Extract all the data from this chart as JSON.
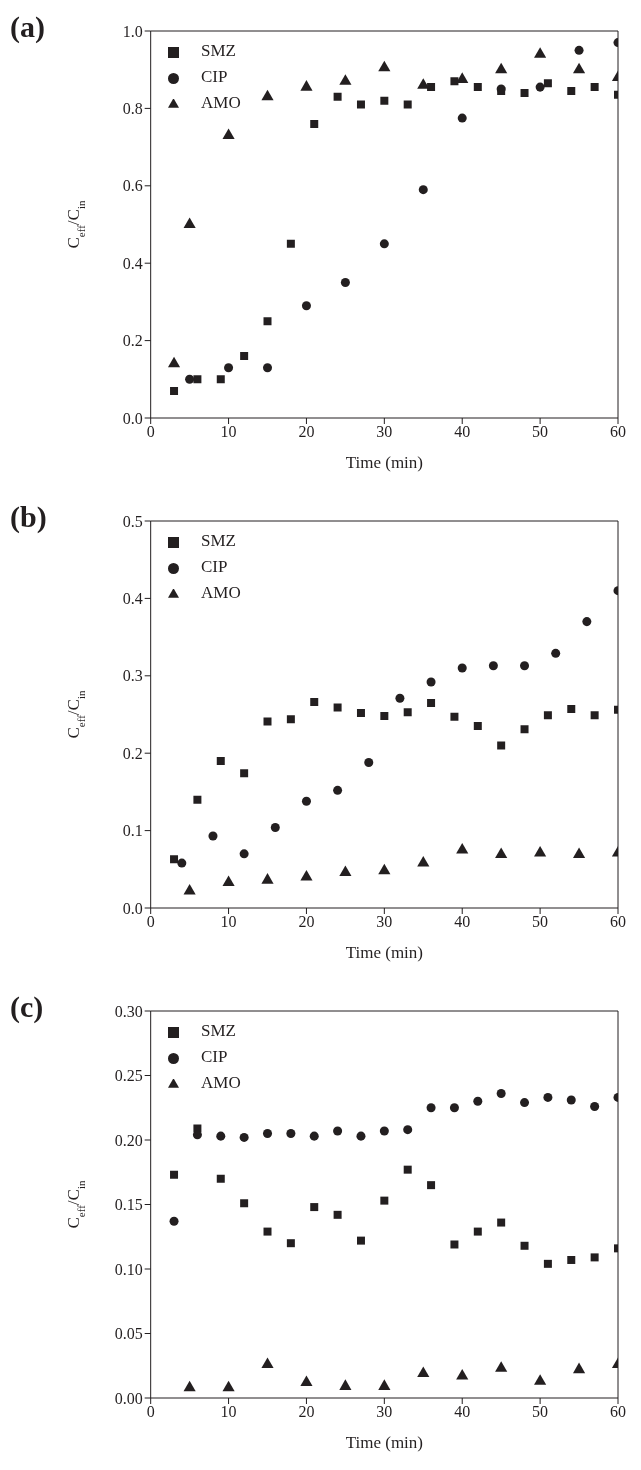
{
  "chart_data": [
    {
      "type": "scatter",
      "title": "(a)",
      "xlabel": "Time (min)",
      "ylabel": "C$_{eff}$/C$_{in}$",
      "xlim": [
        0,
        60
      ],
      "xticks": [
        0,
        10,
        20,
        30,
        40,
        50,
        60
      ],
      "ylim": [
        0,
        1
      ],
      "yticks": [
        {
          "value": 0,
          "label": "0.0"
        },
        0.2,
        0.4,
        0.6,
        0.8,
        {
          "value": 1,
          "label": "1.0"
        }
      ],
      "legend": "top left",
      "series": [
        {
          "name": "SMZ",
          "color": "#231f20",
          "marker": "square",
          "x": [
            3,
            6,
            9,
            12,
            15,
            18,
            21,
            24,
            27,
            30,
            33,
            36,
            39,
            42,
            45,
            48,
            51,
            54,
            57,
            60
          ],
          "values": [
            0.07,
            0.1,
            0.1,
            0.16,
            0.25,
            0.45,
            0.76,
            0.83,
            0.81,
            0.82,
            0.81,
            0.855,
            0.87,
            0.855,
            0.845,
            0.84,
            0.865,
            0.845,
            0.855,
            0.835
          ]
        },
        {
          "name": "CIP",
          "color": "#231f20",
          "marker": "circle",
          "x": [
            5,
            10,
            15,
            20,
            25,
            30,
            35,
            40,
            45,
            50,
            55,
            60
          ],
          "values": [
            0.1,
            0.13,
            0.13,
            0.29,
            0.35,
            0.45,
            0.59,
            0.775,
            0.85,
            0.855,
            0.95,
            0.97
          ]
        },
        {
          "name": "AMO",
          "color": "#231f20",
          "marker": "triangle",
          "x": [
            3,
            5,
            10,
            15,
            20,
            25,
            30,
            35,
            40,
            45,
            50,
            55,
            60
          ],
          "values": [
            0.14,
            0.5,
            0.73,
            0.83,
            0.855,
            0.87,
            0.905,
            0.86,
            0.875,
            0.9,
            0.94,
            0.9,
            0.88
          ]
        }
      ]
    },
    {
      "type": "scatter",
      "title": "(b)",
      "xlabel": "Time (min)",
      "ylabel": "C$_{eff}$/C$_{in}$",
      "xlim": [
        0,
        60
      ],
      "xticks": [
        0,
        10,
        20,
        30,
        40,
        50,
        60
      ],
      "ylim": [
        0,
        0.5
      ],
      "yticks": [
        {
          "value": 0,
          "label": "0.0"
        },
        0.1,
        0.2,
        0.3,
        0.4,
        0.5
      ],
      "legend": "top left",
      "series": [
        {
          "name": "SMZ",
          "color": "#231f20",
          "marker": "square",
          "x": [
            3,
            6,
            9,
            12,
            15,
            18,
            21,
            24,
            27,
            30,
            33,
            36,
            39,
            42,
            45,
            48,
            51,
            54,
            57,
            60
          ],
          "values": [
            0.063,
            0.14,
            0.19,
            0.174,
            0.241,
            0.244,
            0.266,
            0.259,
            0.252,
            0.248,
            0.253,
            0.265,
            0.247,
            0.235,
            0.21,
            0.231,
            0.249,
            0.257,
            0.249,
            0.256
          ]
        },
        {
          "name": "CIP",
          "color": "#231f20",
          "marker": "circle",
          "x": [
            4,
            8,
            12,
            16,
            20,
            24,
            28,
            32,
            36,
            40,
            44,
            48,
            52,
            56,
            60
          ],
          "values": [
            0.058,
            0.093,
            0.07,
            0.104,
            0.138,
            0.152,
            0.188,
            0.271,
            0.292,
            0.31,
            0.313,
            0.313,
            0.329,
            0.37,
            0.41
          ]
        },
        {
          "name": "AMO",
          "color": "#231f20",
          "marker": "triangle",
          "x": [
            5,
            10,
            15,
            20,
            25,
            30,
            35,
            40,
            45,
            50,
            55,
            60
          ],
          "values": [
            0.022,
            0.033,
            0.036,
            0.04,
            0.046,
            0.048,
            0.058,
            0.075,
            0.069,
            0.071,
            0.069,
            0.071
          ]
        }
      ]
    },
    {
      "type": "scatter",
      "title": "(c)",
      "xlabel": "Time (min)",
      "ylabel": "C$_{eff}$/C$_{in}$",
      "xlim": [
        0,
        60
      ],
      "xticks": [
        0,
        10,
        20,
        30,
        40,
        50,
        60
      ],
      "ylim": [
        0,
        0.3
      ],
      "yticks": [
        {
          "value": 0,
          "label": "0.00"
        },
        0.05,
        {
          "value": 0.1,
          "label": "0.10"
        },
        0.15,
        {
          "value": 0.2,
          "label": "0.20"
        },
        0.25,
        {
          "value": 0.3,
          "label": "0.30"
        }
      ],
      "legend": "top left",
      "series": [
        {
          "name": "SMZ",
          "color": "#231f20",
          "marker": "square",
          "x": [
            3,
            6,
            9,
            12,
            15,
            18,
            21,
            24,
            27,
            30,
            33,
            36,
            39,
            42,
            45,
            48,
            51,
            54,
            57,
            60
          ],
          "values": [
            0.173,
            0.209,
            0.17,
            0.151,
            0.129,
            0.12,
            0.148,
            0.142,
            0.122,
            0.153,
            0.177,
            0.165,
            0.119,
            0.129,
            0.136,
            0.118,
            0.104,
            0.107,
            0.109,
            0.116
          ]
        },
        {
          "name": "CIP",
          "color": "#231f20",
          "marker": "circle",
          "x": [
            3,
            6,
            9,
            12,
            15,
            18,
            21,
            24,
            27,
            30,
            33,
            36,
            39,
            42,
            45,
            48,
            51,
            54,
            57,
            60
          ],
          "values": [
            0.137,
            0.204,
            0.203,
            0.202,
            0.205,
            0.205,
            0.203,
            0.207,
            0.203,
            0.207,
            0.208,
            0.225,
            0.225,
            0.23,
            0.236,
            0.229,
            0.233,
            0.231,
            0.226,
            0.233
          ]
        },
        {
          "name": "AMO",
          "color": "#231f20",
          "marker": "triangle",
          "x": [
            5,
            10,
            15,
            20,
            25,
            30,
            35,
            40,
            45,
            50,
            55,
            60
          ],
          "values": [
            0.008,
            0.008,
            0.026,
            0.012,
            0.009,
            0.009,
            0.019,
            0.017,
            0.023,
            0.013,
            0.022,
            0.026
          ]
        }
      ]
    }
  ]
}
